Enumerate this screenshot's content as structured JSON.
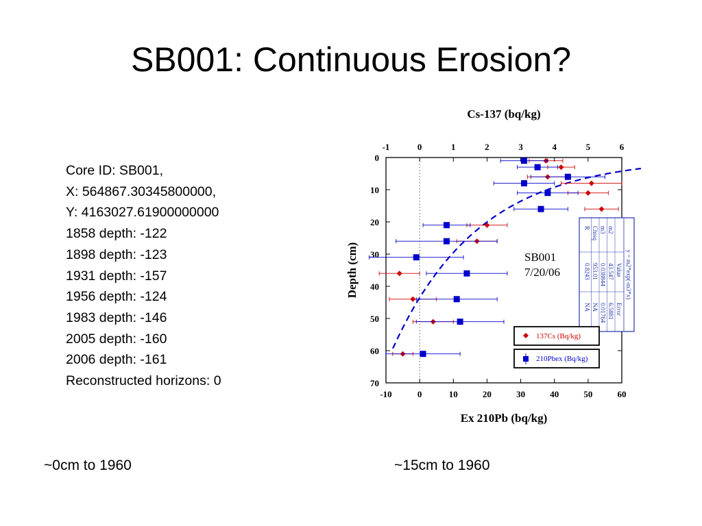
{
  "slide": {
    "title": "SB001: Continuous Erosion?",
    "info_lines": [
      "Core ID: SB001,",
      "X: 564867.30345800000,",
      "Y: 4163027.61900000000",
      "1858 depth: -122",
      "1898 depth: -123",
      "1931 depth: -157",
      "1956 depth: -124",
      "1983 depth: -146",
      "2005 depth: -160",
      "2006 depth: -161",
      "Reconstructed horizons: 0"
    ],
    "caption_left": "~0cm to 1960",
    "caption_right": "~15cm to 1960"
  },
  "chart_data": {
    "type": "scatter",
    "title_top": "Cs-137 (bq/kg)",
    "xlabel_bottom": "Ex 210Pb (bq/kg)",
    "ylabel": "Depth (cm)",
    "x_top_ticks": [
      "-1",
      "0",
      "1",
      "2",
      "3",
      "4",
      "5",
      "6"
    ],
    "x_top_range": [
      -1,
      6
    ],
    "x_bottom_ticks": [
      "-10",
      "0",
      "10",
      "20",
      "30",
      "40",
      "50",
      "60"
    ],
    "x_bottom_range": [
      -10,
      60
    ],
    "y_ticks": [
      "0",
      "10",
      "20",
      "30",
      "40",
      "50",
      "60",
      "70"
    ],
    "y_range": [
      0,
      70
    ],
    "y_inverted": true,
    "zero_line_dotted": true,
    "annotation": [
      "SB001",
      "7/20/06"
    ],
    "fit_table": {
      "equation": "y = m2*exp(-m3*x)",
      "header": [
        "",
        "Value",
        "Error"
      ],
      "rows": [
        [
          "m2",
          "43.547",
          "6.5881"
        ],
        [
          "m3",
          "0.038844",
          "0.01764"
        ],
        [
          "Chisq",
          "953.01",
          "NA"
        ],
        [
          "R",
          "0.8243",
          "NA"
        ]
      ]
    },
    "fit_curve": {
      "m2": 43.547,
      "m3": 0.038844,
      "depth_range": [
        3,
        60
      ],
      "color": "#0000cc"
    },
    "series": [
      {
        "name": "137Cs (Bq/kg)",
        "axis": "top",
        "color": "#cc0000",
        "marker": "diamond",
        "points": [
          {
            "x": 3.75,
            "y": 1,
            "xerr": 0.5
          },
          {
            "x": 4.2,
            "y": 3,
            "xerr": 0.4
          },
          {
            "x": 3.8,
            "y": 6,
            "xerr": 0.6
          },
          {
            "x": 5.1,
            "y": 8,
            "xerr": 0.9
          },
          {
            "x": 5.0,
            "y": 11,
            "xerr": 0.6
          },
          {
            "x": 5.4,
            "y": 16,
            "xerr": 0.5
          },
          {
            "x": 2.0,
            "y": 21,
            "xerr": 0.6
          },
          {
            "x": 1.7,
            "y": 26,
            "xerr": 0.6
          },
          {
            "x": -0.6,
            "y": 36,
            "xerr": 0.6
          },
          {
            "x": -0.2,
            "y": 44,
            "xerr": 0.7
          },
          {
            "x": 0.4,
            "y": 51,
            "xerr": 0.6
          },
          {
            "x": -0.5,
            "y": 61,
            "xerr": 0.3
          }
        ]
      },
      {
        "name": "210Pbex (Bq/kg)",
        "axis": "bottom",
        "color": "#0000cc",
        "marker": "square",
        "points": [
          {
            "x": 31,
            "y": 1,
            "xerr": 7
          },
          {
            "x": 35,
            "y": 3,
            "xerr": 6
          },
          {
            "x": 44,
            "y": 6,
            "xerr": 11
          },
          {
            "x": 31,
            "y": 8,
            "xerr": 9
          },
          {
            "x": 38,
            "y": 11,
            "xerr": 9
          },
          {
            "x": 36,
            "y": 16,
            "xerr": 8
          },
          {
            "x": 8,
            "y": 21,
            "xerr": 7
          },
          {
            "x": 8,
            "y": 26,
            "xerr": 15
          },
          {
            "x": -1,
            "y": 31,
            "xerr": 14
          },
          {
            "x": 14,
            "y": 36,
            "xerr": 12
          },
          {
            "x": 11,
            "y": 44,
            "xerr": 12
          },
          {
            "x": 12,
            "y": 51,
            "xerr": 13
          },
          {
            "x": 1,
            "y": 61,
            "xerr": 11
          }
        ]
      }
    ]
  }
}
